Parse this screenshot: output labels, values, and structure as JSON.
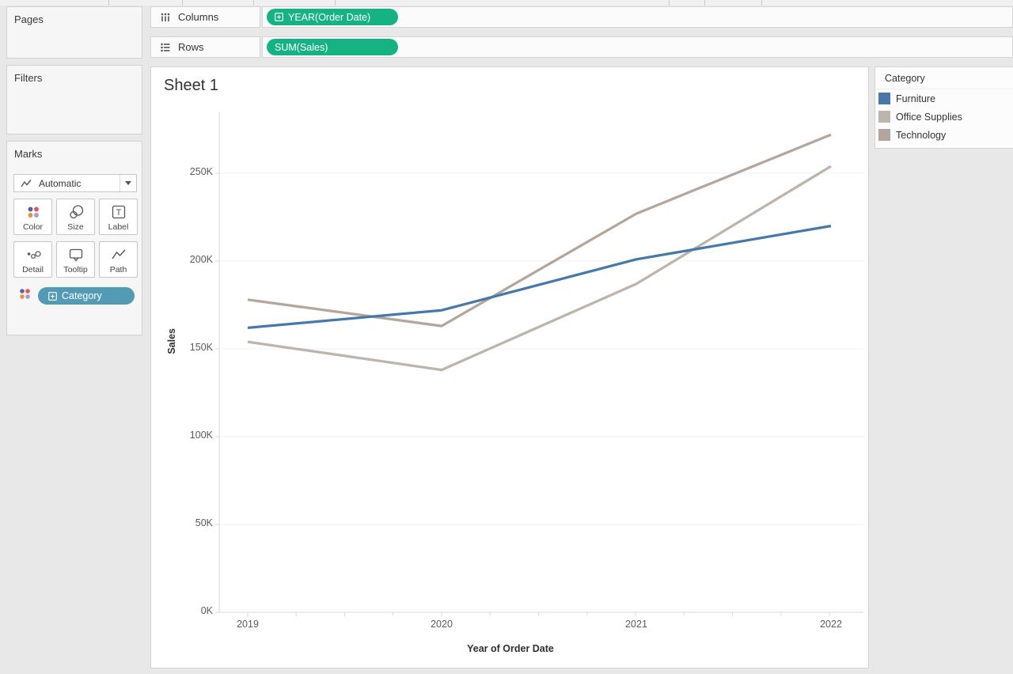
{
  "colors": {
    "field_pill_green": "#15b284",
    "category_pill_blue": "#539bb5",
    "axis_line": "#d8d8d8",
    "gridline": "#f1f1f1"
  },
  "shelves": {
    "columns": {
      "label": "Columns",
      "pills": [
        {
          "label": "YEAR(Order Date)",
          "has_expand_icon": true
        }
      ]
    },
    "rows": {
      "label": "Rows",
      "pills": [
        {
          "label": "SUM(Sales)",
          "has_expand_icon": false
        }
      ]
    }
  },
  "panels": {
    "pages": {
      "title": "Pages"
    },
    "filters": {
      "title": "Filters"
    },
    "marks": {
      "title": "Marks",
      "mark_type": "Automatic",
      "buttons": [
        {
          "label": "Color"
        },
        {
          "label": "Size"
        },
        {
          "label": "Label"
        },
        {
          "label": "Detail"
        },
        {
          "label": "Tooltip"
        },
        {
          "label": "Path"
        }
      ],
      "color_pill": {
        "label": "Category"
      }
    }
  },
  "sheet": {
    "title": "Sheet 1"
  },
  "legend": {
    "title": "Category",
    "items": [
      {
        "label": "Furniture",
        "color": "#4678a8"
      },
      {
        "label": "Office Supplies",
        "color": "#bdb4ac"
      },
      {
        "label": "Technology",
        "color": "#b4a69d"
      }
    ]
  },
  "chart_data": {
    "type": "line",
    "title": "Sheet 1",
    "x": [
      2019,
      2020,
      2021,
      2022
    ],
    "xlabel": "Year of Order Date",
    "ylabel": "Sales",
    "ylim": [
      0,
      285000
    ],
    "ytick_interval": 50000,
    "yticks": [
      "0K",
      "50K",
      "100K",
      "150K",
      "200K",
      "250K"
    ],
    "grid": "horizontal",
    "legend_position": "right",
    "series": [
      {
        "name": "Furniture",
        "color": "#4678a8",
        "values": [
          162000,
          172000,
          201000,
          220000
        ]
      },
      {
        "name": "Office Supplies",
        "color": "#bdb4ac",
        "values": [
          154000,
          138000,
          187000,
          254000
        ]
      },
      {
        "name": "Technology",
        "color": "#b4a69d",
        "values": [
          178000,
          163000,
          227000,
          272000
        ]
      }
    ]
  }
}
